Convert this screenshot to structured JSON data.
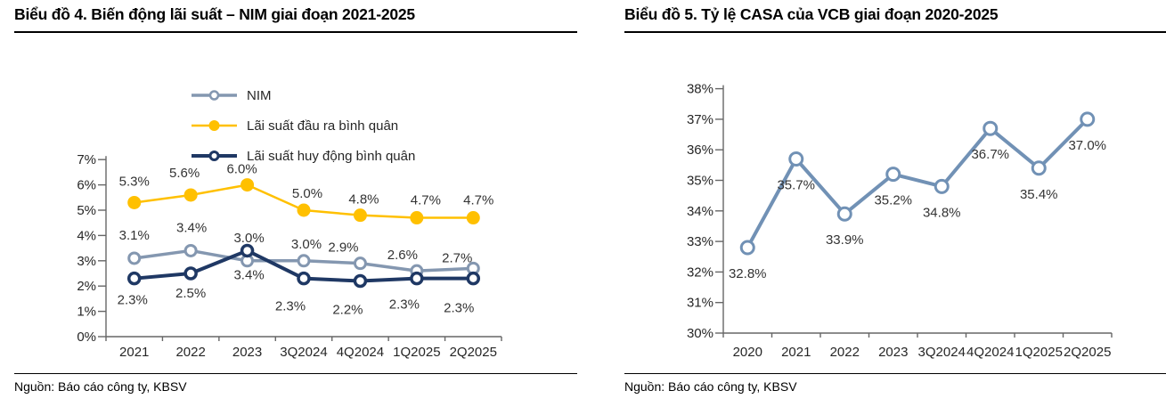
{
  "page": {
    "background": "#ffffff"
  },
  "charts": [
    {
      "name": "bieu-do-4"
    },
    {
      "name": "bieu-do-5"
    }
  ],
  "sources": [
    "Nguồn: Báo cáo công ty, KBSV",
    "Nguồn: Báo cáo công ty, KBSV"
  ],
  "chart_data": [
    {
      "type": "line",
      "title": "Biểu đồ 4. Biến động lãi suất – NIM giai đoạn 2021-2025",
      "categories": [
        "2021",
        "2022",
        "2023",
        "3Q2024",
        "4Q2024",
        "1Q2025",
        "2Q2025"
      ],
      "series": [
        {
          "name": "NIM",
          "values": [
            3.1,
            3.4,
            3.0,
            3.0,
            2.9,
            2.6,
            2.7
          ],
          "color": "#8497B0",
          "marker": "open-circle"
        },
        {
          "name": "Lãi suất đầu ra bình quân",
          "values": [
            5.3,
            5.6,
            6.0,
            5.0,
            4.8,
            4.7,
            4.7
          ],
          "color": "#FFC000",
          "marker": "filled-circle"
        },
        {
          "name": "Lãi suất huy động bình quân",
          "values": [
            2.3,
            2.5,
            3.4,
            2.3,
            2.2,
            2.3,
            2.3
          ],
          "color": "#1F3864",
          "marker": "open-circle"
        }
      ],
      "ylim": [
        0,
        7
      ],
      "ytick_step": 1,
      "ytick_labels": [
        "0%",
        "1%",
        "2%",
        "3%",
        "4%",
        "5%",
        "6%",
        "7%"
      ],
      "data_labels_decimals": 1,
      "data_label_suffix": "%",
      "legend_position": "top-stacked",
      "grid": false,
      "axis_color": "#666666",
      "label_color": "#333333"
    },
    {
      "type": "line",
      "title": "Biểu đồ 5. Tỷ lệ CASA của VCB giai đoạn 2020-2025",
      "categories": [
        "2020",
        "2021",
        "2022",
        "2023",
        "3Q2024",
        "4Q2024",
        "1Q2025",
        "2Q2025"
      ],
      "series": [
        {
          "name": "",
          "values": [
            32.8,
            35.7,
            33.9,
            35.2,
            34.8,
            36.7,
            35.4,
            37.0
          ],
          "color": "#7191B5",
          "marker": "open-circle"
        }
      ],
      "ylim": [
        30,
        38
      ],
      "ytick_step": 1,
      "ytick_labels": [
        "30%",
        "31%",
        "32%",
        "33%",
        "34%",
        "35%",
        "36%",
        "37%",
        "38%"
      ],
      "data_labels_decimals": 1,
      "data_label_suffix": "%",
      "legend_position": "none",
      "grid": false,
      "axis_color": "#666666",
      "label_color": "#333333"
    }
  ]
}
